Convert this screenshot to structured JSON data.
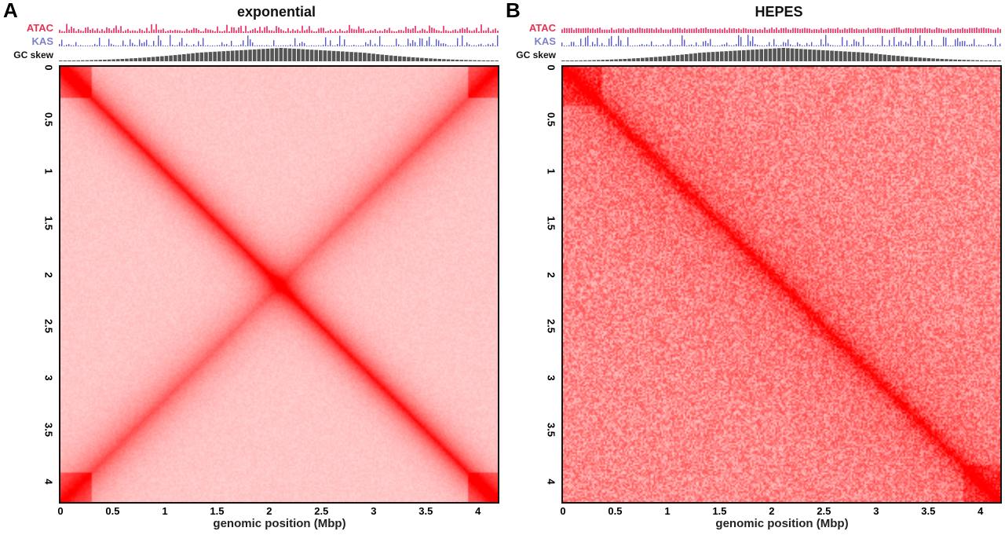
{
  "chart_data": [
    {
      "type": "heatmap",
      "panel": "A",
      "title": "exponential",
      "pattern": "diagonal-and-antidiagonal",
      "tracks": [
        "ATAC",
        "KAS",
        "GC skew"
      ],
      "track_colors": {
        "ATAC": "#f0507a",
        "KAS": "#5a5ad0",
        "GC skew": "#555555"
      },
      "xlabel": "genomic position (Mbp)",
      "xticks": [
        "0",
        "0.5",
        "1",
        "1.5",
        "2",
        "2.5",
        "3",
        "3.5",
        "4"
      ],
      "yticks": [
        "0",
        "0.5",
        "1",
        "1.5",
        "2",
        "2.5",
        "3",
        "3.5",
        "4"
      ],
      "xlim": [
        0,
        4.22
      ],
      "ylim": [
        0,
        4.22
      ],
      "colormap": [
        "#ffffff",
        "#ff0000"
      ]
    },
    {
      "type": "heatmap",
      "panel": "B",
      "title": "HEPES",
      "pattern": "diagonal",
      "tracks": [
        "ATAC",
        "KAS",
        "GC skew"
      ],
      "track_colors": {
        "ATAC": "#f0507a",
        "KAS": "#5a5ad0",
        "GC skew": "#555555"
      },
      "xlabel": "genomic position (Mbp)",
      "xticks": [
        "0",
        "0.5",
        "1",
        "1.5",
        "2",
        "2.5",
        "3",
        "3.5",
        "4"
      ],
      "yticks": [
        "0",
        "0.5",
        "1",
        "1.5",
        "2",
        "2.5",
        "3",
        "3.5",
        "4"
      ],
      "xlim": [
        0,
        4.22
      ],
      "ylim": [
        0,
        4.22
      ],
      "colormap": [
        "#ffffff",
        "#ff0000"
      ]
    }
  ],
  "labels": {
    "atac_color": "#e8334f",
    "kas_color": "#8080c8",
    "gc_color": "#111111"
  }
}
